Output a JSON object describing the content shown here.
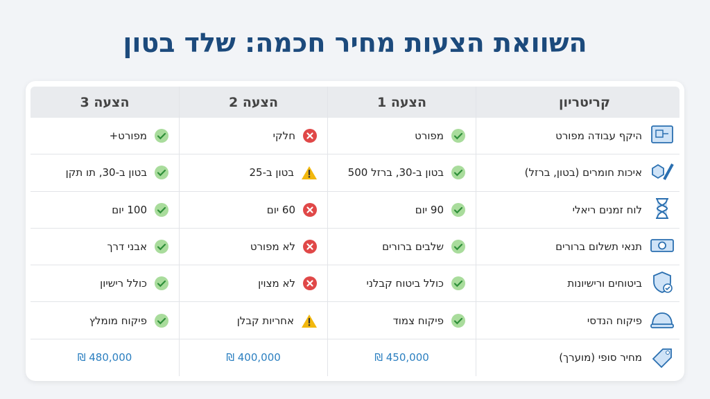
{
  "title": "השוואת הצעות מחיר חכמה: שלד בטון",
  "table": {
    "header": [
      "קריטריון",
      "הצעה 1",
      "הצעה 2",
      "הצעה 3"
    ],
    "rows": [
      {
        "criterion": "היקף עבודה מפורט",
        "cells": [
          {
            "text": "מפורט",
            "icon": "check"
          },
          {
            "text": "חלקי",
            "icon": "x"
          },
          {
            "text": "מפורט+",
            "icon": "check"
          }
        ]
      },
      {
        "criterion": "איכות חומרים (בטון, ברזל)",
        "cells": [
          {
            "text": "בטון ב-30, ברזל 500",
            "icon": "check"
          },
          {
            "text": "בטון ב-25",
            "icon": "warn"
          },
          {
            "text": "בטון ב-30, תו תקן",
            "icon": "check"
          }
        ]
      },
      {
        "criterion": "לוח זמנים ריאלי",
        "cells": [
          {
            "text": "90 יום",
            "icon": "check"
          },
          {
            "text": "60 יום",
            "icon": "x"
          },
          {
            "text": "100 יום",
            "icon": "check"
          }
        ]
      },
      {
        "criterion": "תנאי תשלום ברורים",
        "cells": [
          {
            "text": "שלבים ברורים",
            "icon": "check"
          },
          {
            "text": "לא מפורט",
            "icon": "x"
          },
          {
            "text": "אבני דרך",
            "icon": "check"
          }
        ]
      },
      {
        "criterion": "ביטוחים ורישיונות",
        "cells": [
          {
            "text": "כולל ביטוח קבלני",
            "icon": "check"
          },
          {
            "text": "לא מצוין",
            "icon": "x"
          },
          {
            "text": "כולל רישיון",
            "icon": "check"
          }
        ]
      },
      {
        "criterion": "פיקוח הנדסי",
        "cells": [
          {
            "text": "פיקוח צמוד",
            "icon": "check"
          },
          {
            "text": "אחריות קבלן",
            "icon": "warn"
          },
          {
            "text": "פיקוח מומלץ",
            "icon": "check"
          }
        ]
      },
      {
        "criterion": "מחיר סופי (מוערך)",
        "cells": [
          {
            "text": "₪ 450,000",
            "icon": "price"
          },
          {
            "text": "₪ 400,000",
            "icon": "price"
          },
          {
            "text": "₪ 480,000",
            "icon": "price"
          }
        ]
      }
    ]
  }
}
